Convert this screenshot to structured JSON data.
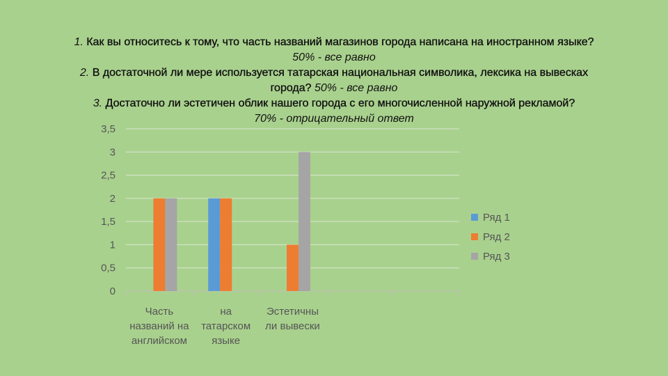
{
  "questions": [
    {
      "num": "1.",
      "text": "Как вы относитесь к тому, что часть названий магазинов города написана на иностранном языке?",
      "answer": "50% - все равно"
    },
    {
      "num": "2.",
      "text_line1": "В достаточной ли мере используется татарская национальная символика, лексика на вывесках",
      "text_line2": "города?",
      "answer": "50% - все равно"
    },
    {
      "num": "3.",
      "text": "Достаточно ли эстетичен облик нашего города с его многочисленной наружной рекламой?",
      "answer": "70% - отрицательный ответ"
    }
  ],
  "colors": {
    "series1": "#5b9bd5",
    "series2": "#ed7d31",
    "series3": "#a5a5a5",
    "grid": "#d9e8cf",
    "axis": "#bfbfbf"
  },
  "chart_data": {
    "type": "bar",
    "categories": [
      [
        "Часть",
        "названий на",
        "английском"
      ],
      [
        "на",
        "татарском",
        "языке"
      ],
      [
        "Эстетичны",
        "ли вывески"
      ],
      [
        ""
      ],
      [
        ""
      ]
    ],
    "series": [
      {
        "name": "Ряд 1",
        "values": [
          0,
          2,
          0,
          0,
          0
        ]
      },
      {
        "name": "Ряд 2",
        "values": [
          2,
          2,
          1,
          0,
          0
        ]
      },
      {
        "name": "Ряд 3",
        "values": [
          2,
          0,
          3,
          0,
          0
        ]
      }
    ],
    "ylim": [
      0,
      3.5
    ],
    "yticks": [
      "0",
      "0,5",
      "1",
      "1,5",
      "2",
      "2,5",
      "3",
      "3,5"
    ],
    "grid": true,
    "legend": "right"
  }
}
